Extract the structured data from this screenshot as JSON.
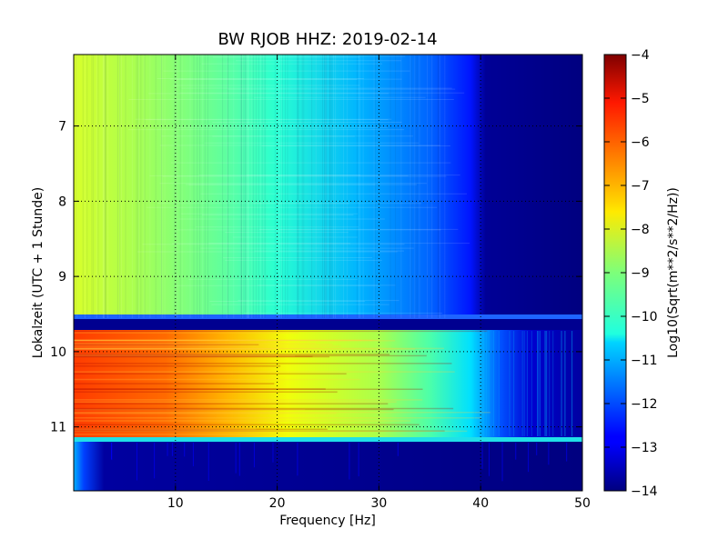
{
  "chart_data": {
    "type": "heatmap",
    "title": "BW RJOB HHZ: 2019-02-14",
    "xlabel": "Frequency [Hz]",
    "ylabel": "Lokalzeit (UTC + 1 Stunde)",
    "xlim": [
      0,
      50
    ],
    "ylim": [
      6.05,
      11.85
    ],
    "x_ticks": [
      10,
      20,
      30,
      40,
      50
    ],
    "y_ticks": [
      7,
      8,
      9,
      10,
      11
    ],
    "grid": true,
    "colorbar": {
      "label": "Log10(Sqrt(m**2/s**2/Hz))",
      "range": [
        -14,
        -4
      ],
      "ticks": [
        -4,
        -5,
        -6,
        -7,
        -8,
        -9,
        -10,
        -11,
        -12,
        -13,
        -14
      ],
      "colormap": "jet"
    },
    "segments": [
      {
        "y_range": [
          6.05,
          9.55
        ],
        "description_values": {
          "f0": -8.2,
          "f20": -9.5,
          "f30": -10.6,
          "f38": -11.8,
          "f40": -13.0,
          "f50": -14.0
        }
      },
      {
        "y_range": [
          9.55,
          9.6
        ],
        "description_values": {
          "level": -12.0
        }
      },
      {
        "y_range": [
          9.6,
          9.73
        ],
        "description_values": {
          "level": -14.0
        }
      },
      {
        "y_range": [
          9.73,
          11.15
        ],
        "description_values": {
          "f0": -5.0,
          "f10": -5.8,
          "f20": -7.5,
          "f30": -8.5,
          "f38": -10.2,
          "f42": -12.3,
          "f50": -13.2
        }
      },
      {
        "y_range": [
          11.15,
          11.21
        ],
        "description_values": {
          "level": -10.4
        }
      },
      {
        "y_range": [
          11.21,
          11.85
        ],
        "description_values": {
          "f0": -11.2,
          "f2": -13.0,
          "f5": -14.0,
          "f50": -14.0
        }
      }
    ]
  }
}
